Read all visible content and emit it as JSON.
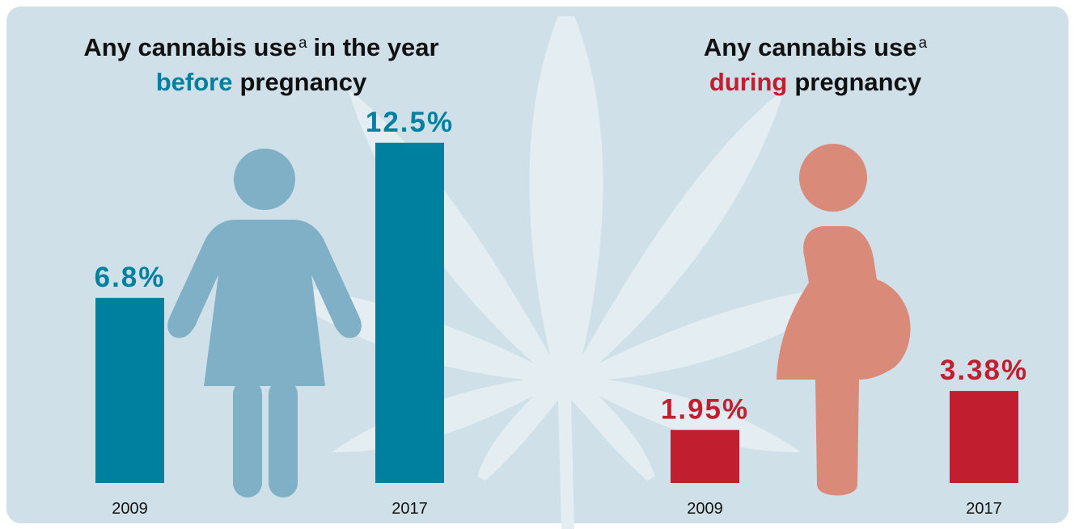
{
  "chart_data": [
    {
      "type": "bar",
      "title_line1": [
        "Any cannabis use",
        "a",
        "in the year"
      ],
      "title_line2": [
        "before",
        "pregnancy"
      ],
      "categories": [
        "2009",
        "2017"
      ],
      "values": [
        6.8,
        12.5
      ],
      "value_labels": [
        "6.8%",
        "12.5%"
      ],
      "color": "#00809f"
    },
    {
      "type": "bar",
      "title_line1": [
        "Any cannabis use",
        "a"
      ],
      "title_line2": [
        "during",
        "pregnancy"
      ],
      "categories": [
        "2009",
        "2017"
      ],
      "values": [
        1.95,
        3.38
      ],
      "value_labels": [
        "1.95%",
        "3.38%"
      ],
      "color": "#c11f30"
    }
  ]
}
